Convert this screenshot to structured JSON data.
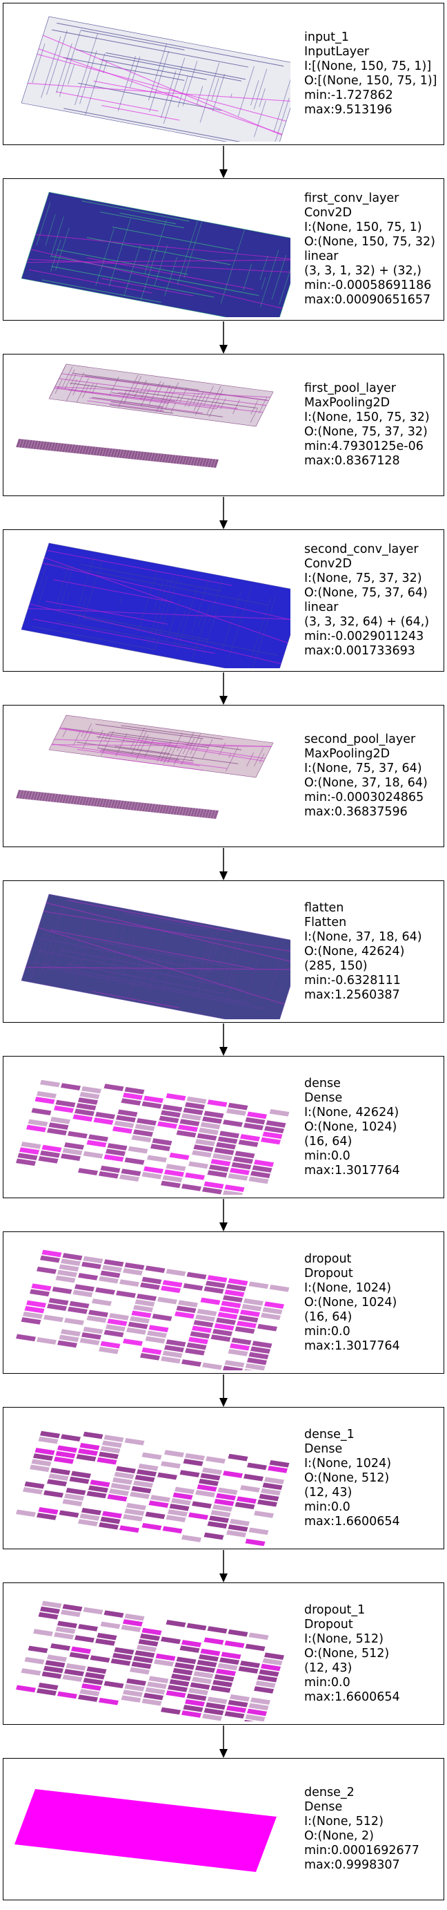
{
  "layers": [
    {
      "lines": [
        "input_1",
        "InputLayer",
        "I:[(None, 150, 75, 1)]",
        "O:[(None, 150, 75, 1)]",
        "min:-1.727862",
        "max:9.513196"
      ],
      "viz": {
        "kind": "grid-single",
        "base": "#e8e8f0",
        "accent": "#3a3a8a",
        "highlight": "#e020e0"
      }
    },
    {
      "lines": [
        "first_conv_layer",
        "Conv2D",
        "I:(None, 150, 75, 1)",
        "O:(None, 150, 75, 32)",
        "linear",
        "(3, 3, 1, 32) + (32,)",
        "min:-0.00058691186",
        "max:0.00090651657"
      ],
      "viz": {
        "kind": "grid-single",
        "base": "#1a1a8c",
        "accent": "#40c080",
        "highlight": "#d020d0"
      }
    },
    {
      "lines": [
        "first_pool_layer",
        "MaxPooling2D",
        "I:(None, 150, 75, 32)",
        "O:(None, 75, 37, 32)",
        "min:4.7930125e-06",
        "max:0.8367128"
      ],
      "viz": {
        "kind": "grid-split",
        "base": "#d8c8d8",
        "accent": "#7a3a7a",
        "highlight": "#c040c0"
      }
    },
    {
      "lines": [
        "second_conv_layer",
        "Conv2D",
        "I:(None, 75, 37, 32)",
        "O:(None, 75, 37, 64)",
        "linear",
        "(3, 3, 32, 64) + (64,)",
        "min:-0.0029011243",
        "max:0.001733693"
      ],
      "viz": {
        "kind": "grid-single",
        "base": "#1010c8",
        "accent": "#4040a0",
        "highlight": "#c020d0"
      }
    },
    {
      "lines": [
        "second_pool_layer",
        "MaxPooling2D",
        "I:(None, 75, 37, 64)",
        "O:(None, 37, 18, 64)",
        "min:-0.0003024865",
        "max:0.36837596"
      ],
      "viz": {
        "kind": "grid-split",
        "base": "#d8c0d0",
        "accent": "#804080",
        "highlight": "#d040d0"
      }
    },
    {
      "lines": [
        "flatten",
        "Flatten",
        "I:(None, 37, 18, 64)",
        "O:(None, 42624)",
        "(285, 150)",
        "min:-0.6328111",
        "max:1.2560387"
      ],
      "viz": {
        "kind": "grid-single",
        "base": "#303080",
        "accent": "#6040a0",
        "highlight": "#b030c0"
      }
    },
    {
      "lines": [
        "dense",
        "Dense",
        "I:(None, 42624)",
        "O:(None, 1024)",
        "(16, 64)",
        "min:0.0",
        "max:1.3017764"
      ],
      "viz": {
        "kind": "blocks",
        "base": "#ffffff",
        "accent": "#9a3a9a",
        "highlight": "#ee22ee"
      }
    },
    {
      "lines": [
        "dropout",
        "Dropout",
        "I:(None, 1024)",
        "O:(None, 1024)",
        "(16, 64)",
        "min:0.0",
        "max:1.3017764"
      ],
      "viz": {
        "kind": "blocks",
        "base": "#ffffff",
        "accent": "#9a3a9a",
        "highlight": "#ee22ee"
      }
    },
    {
      "lines": [
        "dense_1",
        "Dense",
        "I:(None, 1024)",
        "O:(None, 512)",
        "(12, 43)",
        "min:0.0",
        "max:1.6600654"
      ],
      "viz": {
        "kind": "blocks",
        "base": "#ffffff",
        "accent": "#8a2a8a",
        "highlight": "#dd11dd"
      }
    },
    {
      "lines": [
        "dropout_1",
        "Dropout",
        "I:(None, 512)",
        "O:(None, 512)",
        "(12, 43)",
        "min:0.0",
        "max:1.6600654"
      ],
      "viz": {
        "kind": "blocks",
        "base": "#ffffff",
        "accent": "#8a2a8a",
        "highlight": "#dd11dd"
      }
    },
    {
      "lines": [
        "dense_2",
        "Dense",
        "I:(None, 512)",
        "O:(None, 2)",
        "min:0.0001692677",
        "max:0.9998307"
      ],
      "viz": {
        "kind": "solid",
        "base": "#ff00ff",
        "accent": "#ff00ff",
        "highlight": "#ff00ff"
      }
    }
  ]
}
